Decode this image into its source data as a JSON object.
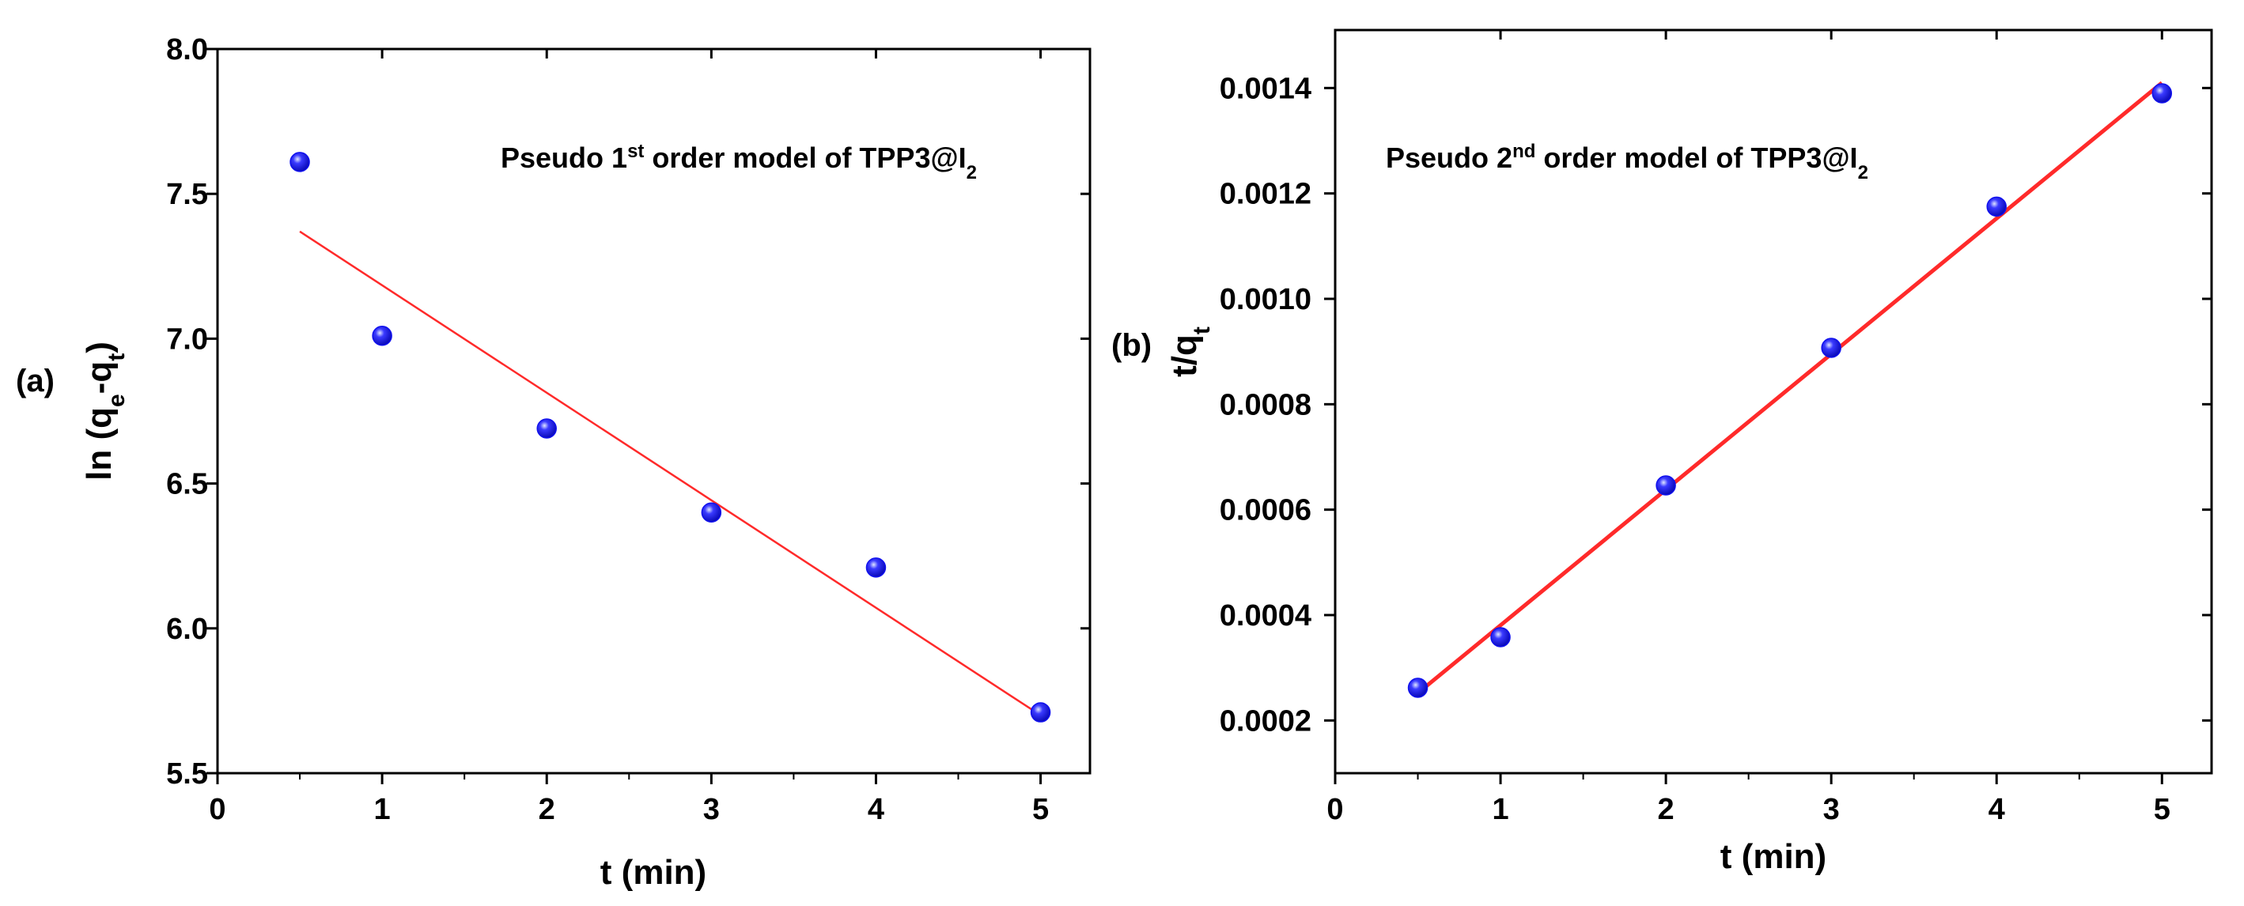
{
  "chart_data": [
    {
      "type": "scatter",
      "panel_label": "(a)",
      "annotation": {
        "pre": "Pseudo 1",
        "sup": "st",
        "mid": " order model of TPP3@I",
        "sub": "2"
      },
      "xlabel": "t (min)",
      "ylabel": {
        "pre": "ln (q",
        "sub1": "e",
        "mid": "-q",
        "sub2": "t",
        "post": ")"
      },
      "xlim": [
        0,
        5.3
      ],
      "ylim": [
        5.5,
        8.0
      ],
      "xticks": [
        0,
        1,
        2,
        3,
        4,
        5
      ],
      "xtick_labels": [
        "0",
        "1",
        "2",
        "3",
        "4",
        "5"
      ],
      "yticks": [
        5.5,
        6.0,
        6.5,
        7.0,
        7.5,
        8.0
      ],
      "ytick_labels": [
        "5.5",
        "6.0",
        "6.5",
        "7.0",
        "7.5",
        "8.0"
      ],
      "x": [
        0.5,
        1,
        2,
        3,
        4,
        5
      ],
      "y": [
        7.61,
        7.01,
        6.69,
        6.4,
        6.21,
        5.71
      ],
      "fit_line": {
        "x": [
          0.5,
          5
        ],
        "y": [
          7.37,
          5.7
        ]
      },
      "marker_color": "#1010ee",
      "line_color": "#ff2a2a"
    },
    {
      "type": "scatter",
      "panel_label": "(b)",
      "annotation": {
        "pre": "Pseudo 2",
        "sup": "nd",
        "mid": " order model of TPP3@I",
        "sub": "2"
      },
      "xlabel": "t (min)",
      "ylabel": {
        "pre": "t/q",
        "sub1": "t",
        "mid": "",
        "sub2": "",
        "post": ""
      },
      "xlim": [
        0,
        5.3
      ],
      "ylim": [
        0.0001,
        0.00151
      ],
      "xticks": [
        0,
        1,
        2,
        3,
        4,
        5
      ],
      "xtick_labels": [
        "0",
        "1",
        "2",
        "3",
        "4",
        "5"
      ],
      "yticks": [
        0.0002,
        0.0004,
        0.0006,
        0.0008,
        0.001,
        0.0012,
        0.0014
      ],
      "ytick_labels": [
        "0.0002",
        "0.0004",
        "0.0006",
        "0.0008",
        "0.0010",
        "0.0012",
        "0.0014"
      ],
      "x": [
        0.5,
        1,
        2,
        3,
        4,
        5
      ],
      "y": [
        0.000262,
        0.000358,
        0.000646,
        0.000907,
        0.001175,
        0.00139
      ],
      "fit_line": {
        "x": [
          0.5,
          5
        ],
        "y": [
          0.000252,
          0.00141
        ]
      },
      "marker_color": "#1010ee",
      "line_color": "#ff2a2a"
    }
  ]
}
